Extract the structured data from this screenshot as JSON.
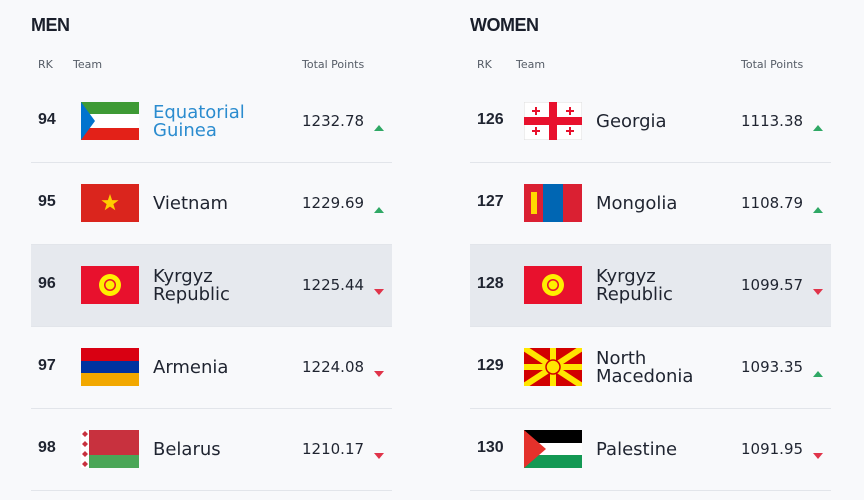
{
  "panels": [
    {
      "title": "MEN",
      "headers": {
        "rank": "RK",
        "team": "Team",
        "points": "Total Points"
      },
      "rows": [
        {
          "rank": 94,
          "team": "Equatorial Guinea",
          "points": 1232.78,
          "trend": "up",
          "team_color": "#2b8ccf"
        },
        {
          "rank": 95,
          "team": "Vietnam",
          "points": 1229.69,
          "trend": "up"
        },
        {
          "rank": 96,
          "team": "Kyrgyz Republic",
          "points": 1225.44,
          "trend": "down",
          "highlighted": true
        },
        {
          "rank": 97,
          "team": "Armenia",
          "points": 1224.08,
          "trend": "down"
        },
        {
          "rank": 98,
          "team": "Belarus",
          "points": 1210.17,
          "trend": "down"
        }
      ]
    },
    {
      "title": "WOMEN",
      "headers": {
        "rank": "RK",
        "team": "Team",
        "points": "Total Points"
      },
      "rows": [
        {
          "rank": 126,
          "team": "Georgia",
          "points": 1113.38,
          "trend": "up"
        },
        {
          "rank": 127,
          "team": "Mongolia",
          "points": 1108.79,
          "trend": "up"
        },
        {
          "rank": 128,
          "team": "Kyrgyz Republic",
          "points": 1099.57,
          "trend": "down",
          "highlighted": true
        },
        {
          "rank": 129,
          "team": "North Macedonia",
          "points": 1093.35,
          "trend": "up"
        },
        {
          "rank": 130,
          "team": "Palestine",
          "points": 1091.95,
          "trend": "down"
        }
      ]
    }
  ]
}
